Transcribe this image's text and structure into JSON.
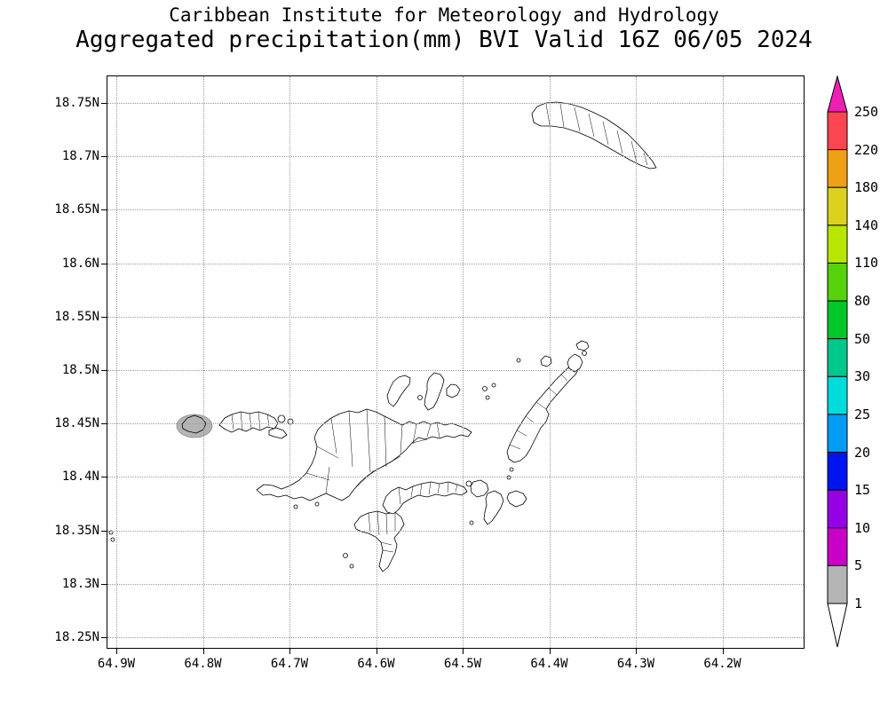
{
  "header": {
    "line1": "Caribbean Institute for Meteorology and Hydrology",
    "line2": "Aggregated precipitation(mm) BVI Valid 16Z 06/05 2024"
  },
  "chart_data": {
    "type": "map",
    "title": "Aggregated precipitation(mm) BVI Valid 16Z 06/05 2024",
    "organization": "Caribbean Institute for Meteorology and Hydrology",
    "region": "BVI",
    "variable": "Aggregated precipitation",
    "units": "mm",
    "valid_time": "16Z 06/05 2024",
    "grid": true,
    "lat_range": [
      18.25,
      18.775
    ],
    "lon_range": [
      -64.91,
      -64.105
    ],
    "lat_ticks": [
      "18.75N",
      "18.7N",
      "18.65N",
      "18.6N",
      "18.55N",
      "18.5N",
      "18.45N",
      "18.4N",
      "18.35N",
      "18.3N",
      "18.25N"
    ],
    "lon_ticks": [
      "64.9W",
      "64.8W",
      "64.7W",
      "64.6W",
      "64.5W",
      "64.4W",
      "64.3W",
      "64.2W"
    ],
    "colorbar": {
      "labels_top_to_bottom": [
        "250",
        "220",
        "180",
        "140",
        "110",
        "80",
        "50",
        "30",
        "25",
        "20",
        "15",
        "10",
        "5",
        "1"
      ],
      "segment_colors_top_to_bottom": [
        "#fa4650",
        "#f0a014",
        "#dcd21e",
        "#b9e600",
        "#55d20a",
        "#00c828",
        "#00c88c",
        "#00dcdc",
        "#009cf5",
        "#0014f0",
        "#9600e6",
        "#c800c8",
        "#b4b4b4"
      ],
      "arrow_top_color": "#f01eb4",
      "arrow_bottom_color": "#ffffff",
      "outline_color": "#000000"
    },
    "features": [
      {
        "name": "precipitation-area",
        "value_range_mm": "1-5",
        "color": "#b4b4b4",
        "approx_lon": "64.81W",
        "approx_lat": "18.45N"
      }
    ]
  }
}
